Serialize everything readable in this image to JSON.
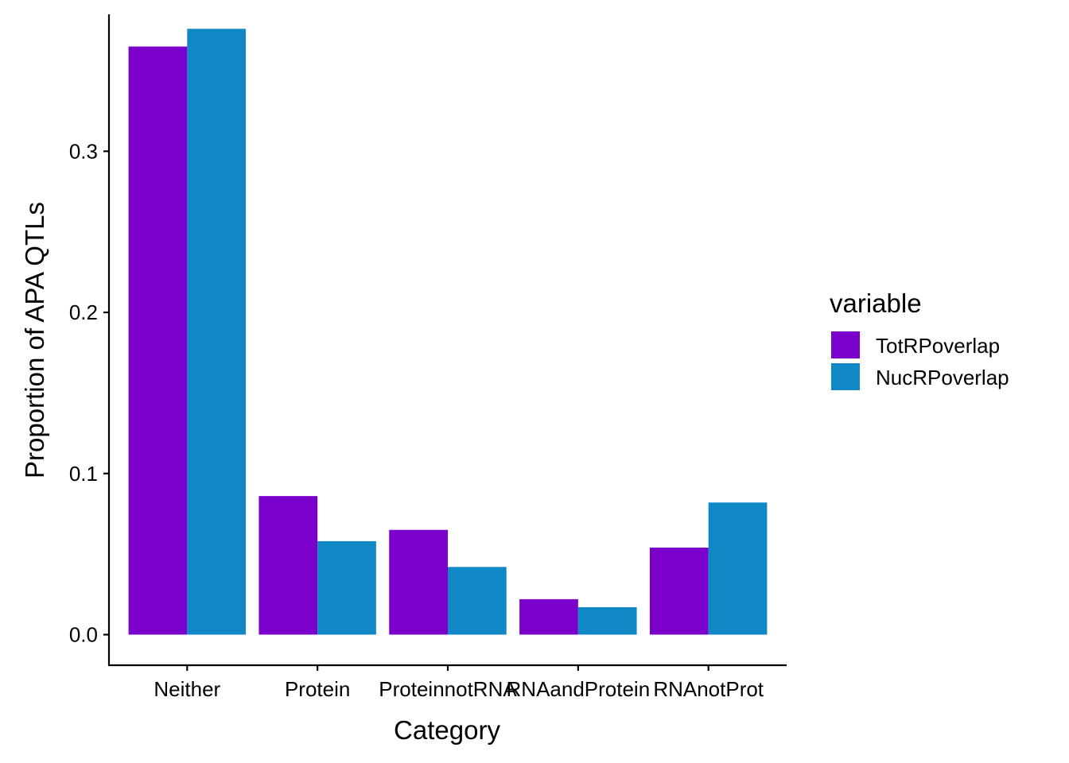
{
  "chart_data": {
    "type": "bar",
    "title": "",
    "xlabel": "Category",
    "ylabel": "Proportion of APA QTLs",
    "categories": [
      "Neither",
      "Protein",
      "ProteinnotRNA",
      "RNAandProtein",
      "RNAnotProt"
    ],
    "series": [
      {
        "name": "TotRPoverlap",
        "color": "#7B00CB",
        "values": [
          0.365,
          0.086,
          0.065,
          0.022,
          0.054
        ]
      },
      {
        "name": "NucRPoverlap",
        "color": "#1188C6",
        "values": [
          0.376,
          0.058,
          0.042,
          0.017,
          0.082
        ]
      }
    ],
    "ylim": [
      -0.019,
      0.385
    ],
    "yticks": [
      0.0,
      0.1,
      0.2,
      0.3
    ],
    "ytick_labels": [
      "0.0",
      "0.1",
      "0.2",
      "0.3"
    ],
    "grid": false,
    "legend": {
      "title": "variable",
      "placement": "right"
    }
  }
}
